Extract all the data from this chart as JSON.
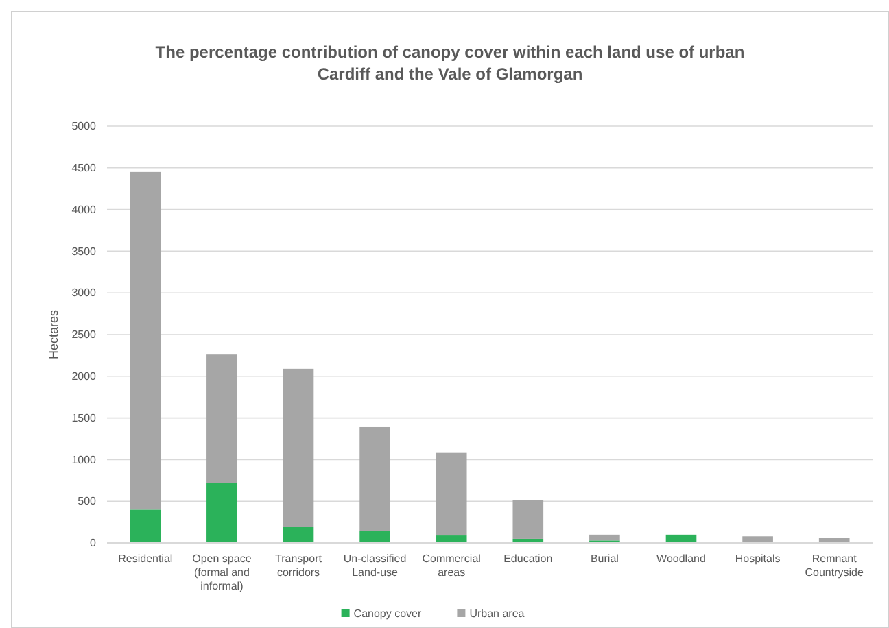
{
  "chart_data": {
    "type": "bar",
    "title": "The percentage contribution of canopy cover within each land use of urban Cardiff and the Vale of Glamorgan",
    "ylabel": "Hectares",
    "categories": [
      "Residential",
      "Open space (formal and informal)",
      "Transport corridors",
      "Un-classified Land-use",
      "Commercial areas",
      "Education",
      "Burial",
      "Woodland",
      "Hospitals",
      "Remnant Countryside"
    ],
    "series": [
      {
        "name": "Canopy cover",
        "color": "#2bb25a",
        "values": [
          400,
          720,
          190,
          140,
          90,
          50,
          30,
          100,
          0,
          0
        ]
      },
      {
        "name": "Urban area",
        "color": "#a6a6a6",
        "values": [
          4050,
          1540,
          1900,
          1250,
          990,
          460,
          70,
          0,
          80,
          65
        ]
      }
    ],
    "stacked": true,
    "ylim": [
      0,
      5000
    ],
    "yticks": [
      0,
      500,
      1000,
      1500,
      2000,
      2500,
      3000,
      3500,
      4000,
      4500,
      5000
    ],
    "grid": "y",
    "legend": "bottom"
  }
}
